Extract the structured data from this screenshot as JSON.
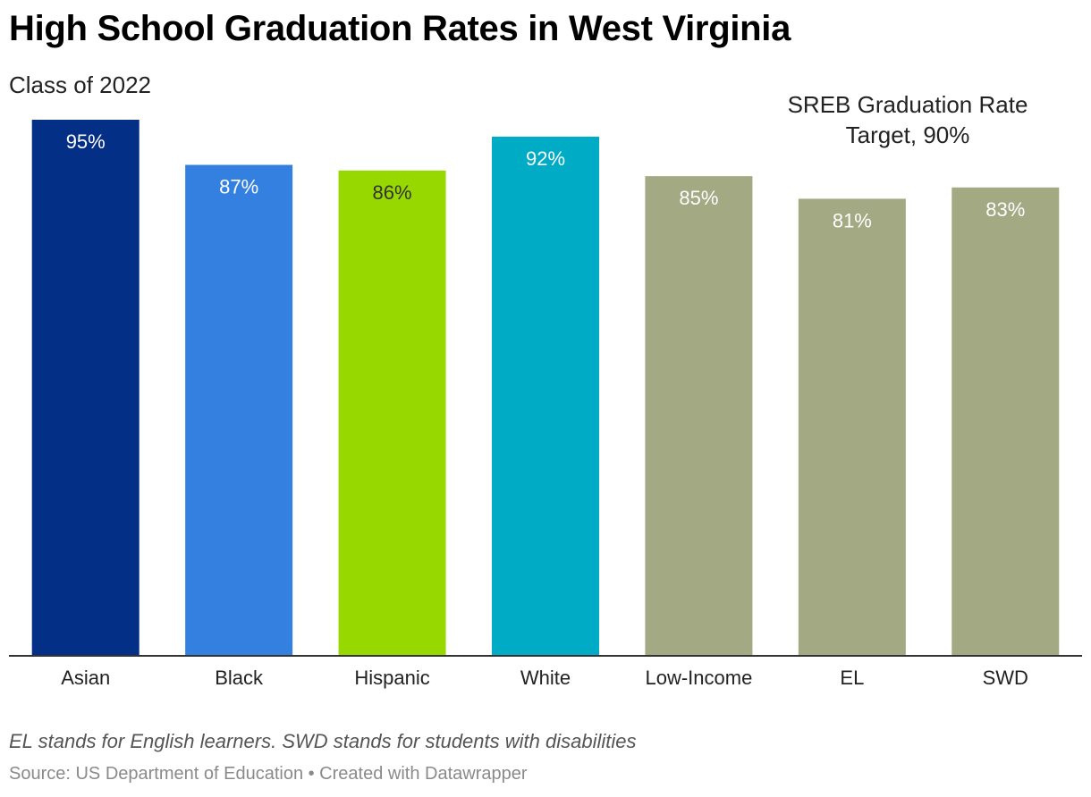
{
  "title": "High School Graduation Rates in West Virginia",
  "subtitle": "Class of 2022",
  "annotation": {
    "line1": "SREB Graduation Rate",
    "line2": "Target, 90%"
  },
  "note": "EL stands for English learners. SWD stands for students with disabilities",
  "source": "Source: US Department of Education • Created with Datawrapper",
  "chart_data": {
    "type": "bar",
    "categories": [
      "Asian",
      "Black",
      "Hispanic",
      "White",
      "Low-Income",
      "EL",
      "SWD"
    ],
    "values": [
      95,
      87,
      86,
      92,
      85,
      81,
      83
    ],
    "value_labels": [
      "95%",
      "87%",
      "86%",
      "92%",
      "85%",
      "81%",
      "83%"
    ],
    "colors": [
      "#032f86",
      "#3380e1",
      "#97d800",
      "#00abc6",
      "#a3a983",
      "#a3a983",
      "#a3a983"
    ],
    "label_colors": [
      "#ffffff",
      "#ffffff",
      "#333333",
      "#ffffff",
      "#ffffff",
      "#ffffff",
      "#ffffff"
    ],
    "ylim": [
      0,
      95
    ],
    "grid": false,
    "baseline_color": "#333333"
  }
}
